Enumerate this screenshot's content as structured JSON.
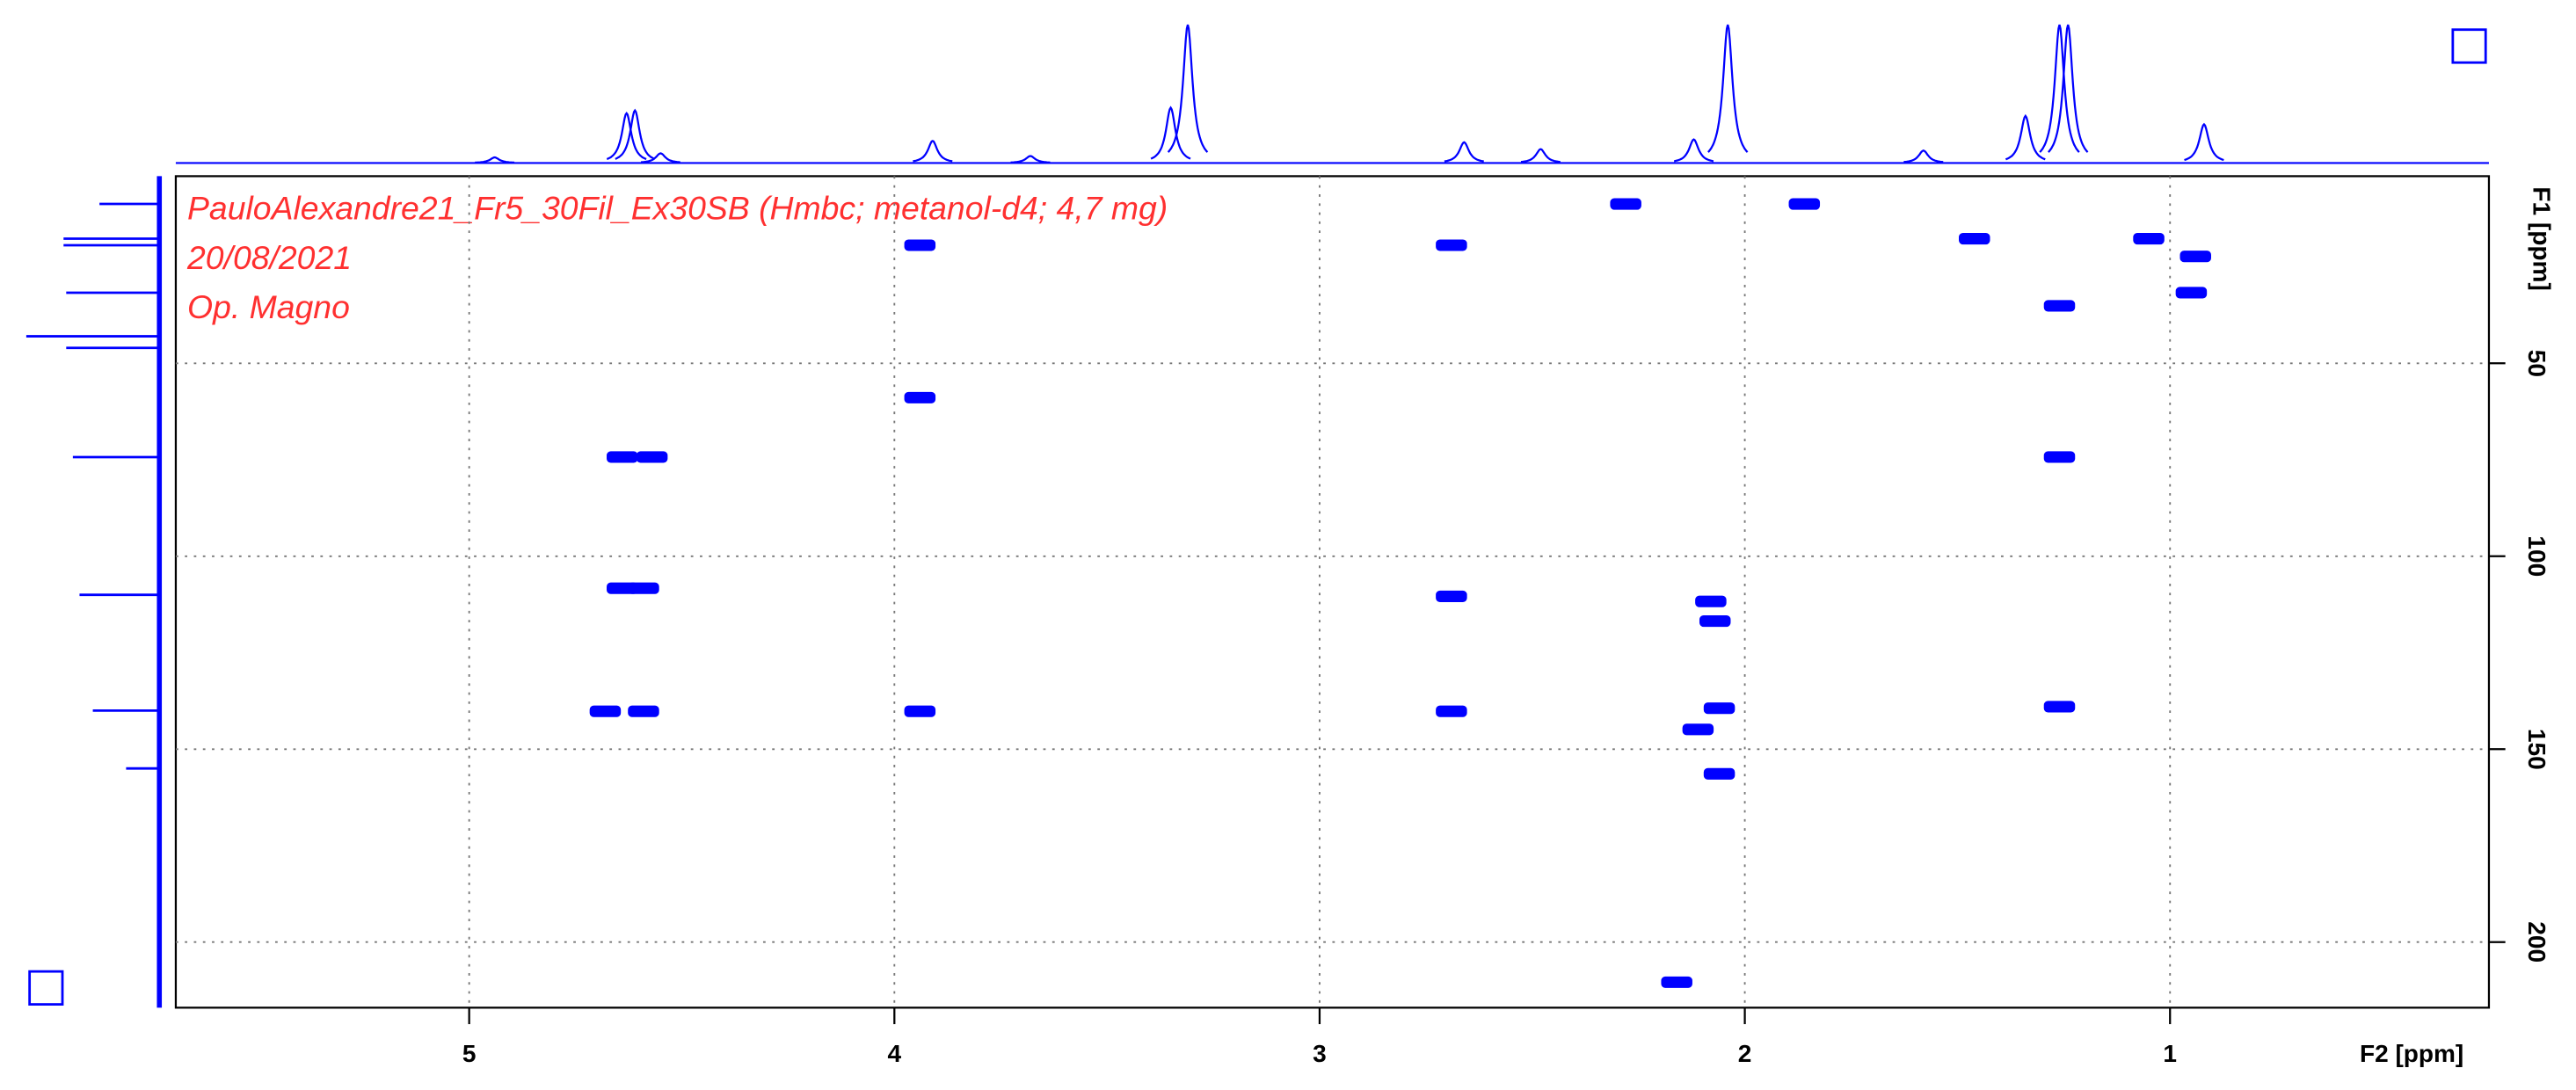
{
  "chart_data": {
    "type": "contour",
    "annotations": [
      "PauloAlexandre21_Fr5_30Fil_Ex30SB (Hmbc; metanol-d4; 4,7 mg)",
      "20/08/2021",
      "Op. Magno"
    ],
    "x_label": "F2 [ppm]",
    "y_label": "F1 [ppm]",
    "xlim": [
      5.69,
      0.25
    ],
    "ylim": [
      1.5,
      217
    ],
    "xticks": [
      5,
      4,
      3,
      2,
      1
    ],
    "yticks": [
      50,
      100,
      150,
      200
    ],
    "grid": true,
    "color": "#0000ff",
    "annotation_color": "#ff3030",
    "peaks": {
      "x": [
        2.28,
        1.86,
        3.94,
        2.69,
        1.46,
        1.05,
        0.94,
        0.95,
        1.26,
        3.94,
        4.64,
        4.57,
        1.26,
        4.64,
        4.59,
        2.69,
        2.08,
        2.07,
        4.68,
        4.59,
        3.94,
        2.69,
        2.06,
        2.11,
        1.26,
        2.06,
        2.16
      ],
      "y": [
        8.7,
        8.7,
        19.4,
        19.4,
        17.7,
        17.7,
        22.3,
        31.7,
        35.1,
        58.9,
        74.3,
        74.3,
        74.3,
        108.3,
        108.3,
        110.4,
        111.7,
        116.8,
        140.2,
        140.2,
        140.2,
        140.2,
        139.4,
        144.9,
        139.0,
        156.4,
        210.4
      ]
    },
    "top_projection": {
      "x": [
        4.94,
        4.63,
        4.61,
        4.55,
        3.91,
        3.68,
        3.35,
        3.31,
        2.66,
        2.48,
        2.12,
        2.04,
        1.58,
        1.34,
        1.26,
        1.24,
        0.92
      ],
      "values": [
        4,
        36,
        38,
        7,
        16,
        5,
        40,
        100,
        15,
        10,
        17,
        100,
        9,
        34,
        100,
        100,
        28
      ]
    },
    "left_projection": {
      "y": [
        8.7,
        17.7,
        19.4,
        31.7,
        43.0,
        46.0,
        74.3,
        110.0,
        140.0,
        155.0
      ],
      "values": [
        45,
        72,
        72,
        70,
        100,
        70,
        65,
        60,
        50,
        25
      ]
    }
  }
}
